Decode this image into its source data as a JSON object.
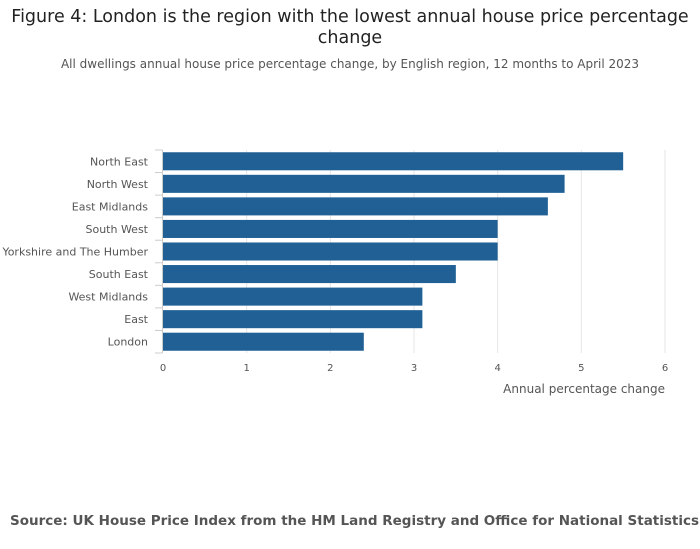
{
  "title": "Figure 4: London is the region with the lowest annual house price percentage change",
  "subtitle": "All dwellings annual house price percentage change, by English region, 12 months to April 2023",
  "source": "Source: UK House Price Index from the HM Land Registry and Office for National Statistics",
  "colors": {
    "bar": "#206095",
    "grid": "#e6e6e6",
    "axis": "#cccccc",
    "text": "#555555"
  },
  "chart_data": {
    "type": "bar",
    "orientation": "horizontal",
    "title": "Figure 4: London is the region with the lowest annual house price percentage change",
    "subtitle": "All dwellings annual house price percentage change, by English region, 12 months to April 2023",
    "categories": [
      "North East",
      "North West",
      "East Midlands",
      "South West",
      "Yorkshire and The Humber",
      "South East",
      "West Midlands",
      "East",
      "London"
    ],
    "values": [
      5.5,
      4.8,
      4.6,
      4.0,
      4.0,
      3.5,
      3.1,
      3.1,
      2.4
    ],
    "xlabel": "Annual percentage change",
    "ylabel": "",
    "xlim": [
      0,
      6
    ],
    "xticks": [
      "0",
      "1",
      "2",
      "3",
      "4",
      "5",
      "6"
    ],
    "grid": true
  }
}
